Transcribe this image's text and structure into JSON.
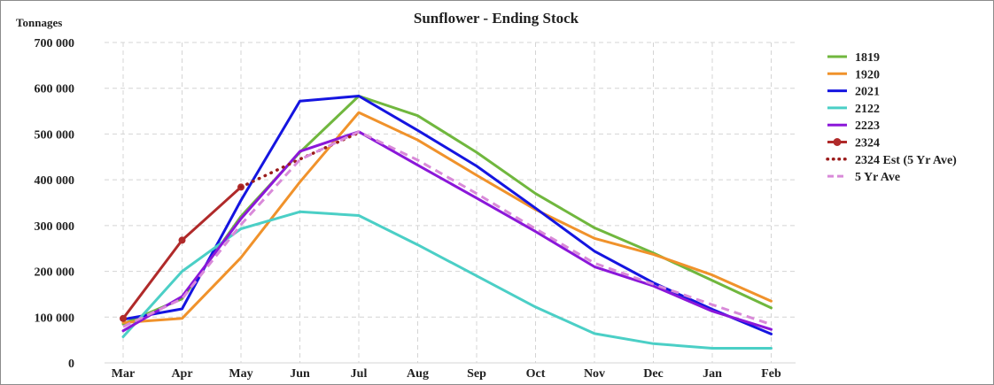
{
  "chart_data": {
    "type": "line",
    "title": "Sunflower - Ending Stock",
    "ylabel": "Tonnages",
    "xlabel": "",
    "categories": [
      "Mar",
      "Apr",
      "May",
      "Jun",
      "Jul",
      "Aug",
      "Sep",
      "Oct",
      "Nov",
      "Dec",
      "Jan",
      "Feb"
    ],
    "ylim": [
      0,
      700000
    ],
    "yticks": [
      0,
      100000,
      200000,
      300000,
      400000,
      500000,
      600000,
      700000
    ],
    "ytick_labels": [
      "0",
      "100 000",
      "200 000",
      "300 000",
      "400 000",
      "500 000",
      "600 000",
      "700 000"
    ],
    "grid": true,
    "legend_position": "right",
    "series": [
      {
        "name": "1819",
        "color": "#70b73e",
        "style": "solid",
        "values": [
          85000,
          140000,
          320000,
          460000,
          583000,
          540000,
          460000,
          370000,
          295000,
          240000,
          180000,
          120000
        ]
      },
      {
        "name": "1920",
        "color": "#f0922b",
        "style": "solid",
        "values": [
          88000,
          97000,
          230000,
          395000,
          547000,
          487000,
          410000,
          335000,
          272000,
          237000,
          192000,
          135000
        ]
      },
      {
        "name": "2021",
        "color": "#1515e0",
        "style": "solid",
        "values": [
          95000,
          118000,
          355000,
          572000,
          583000,
          508000,
          430000,
          338000,
          244000,
          175000,
          117000,
          63000
        ]
      },
      {
        "name": "2122",
        "color": "#4bcfc6",
        "style": "solid",
        "values": [
          57000,
          200000,
          293000,
          330000,
          322000,
          258000,
          190000,
          122000,
          64000,
          42000,
          32000,
          32000
        ]
      },
      {
        "name": "2223",
        "color": "#8b17d9",
        "style": "solid",
        "values": [
          70000,
          145000,
          315000,
          462000,
          505000,
          432000,
          360000,
          287000,
          210000,
          168000,
          113000,
          73000
        ]
      },
      {
        "name": "2324",
        "color": "#b02a2a",
        "style": "solid-marker",
        "values": [
          97000,
          268000,
          384000,
          null,
          null,
          null,
          null,
          null,
          null,
          null,
          null,
          null
        ]
      },
      {
        "name": "2324 Est (5 Yr Ave)",
        "color": "#9b1c1c",
        "style": "dotted",
        "values": [
          null,
          null,
          384000,
          445000,
          503000,
          null,
          null,
          null,
          null,
          null,
          null,
          null
        ]
      },
      {
        "name": "5 Yr Ave",
        "color": "#d98ad9",
        "style": "dashed",
        "values": [
          79000,
          140000,
          302000,
          444000,
          505000,
          443000,
          370000,
          293000,
          218000,
          172000,
          127000,
          84000
        ]
      }
    ]
  }
}
